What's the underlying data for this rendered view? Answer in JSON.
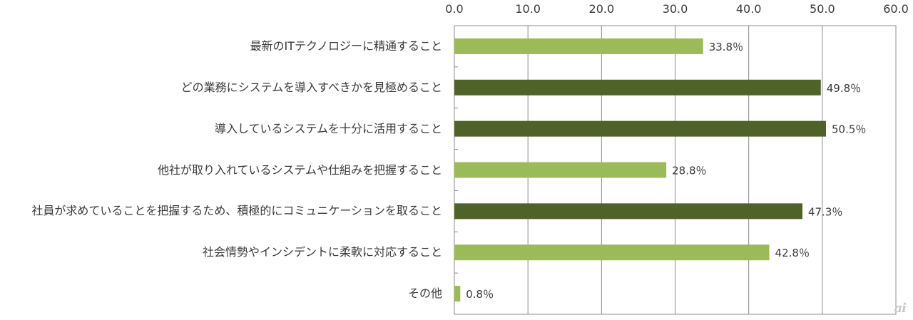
{
  "chart_data": {
    "type": "bar",
    "orientation": "horizontal",
    "categories": [
      "最新のITテクノロジーに精通すること",
      "どの業務にシステムを導入すべきかを見極めること",
      "導入しているシステムを十分に活用すること",
      "他社が取り入れているシステムや仕組みを把握すること",
      "社員が求めていることを把握するため、積極的にコミュニケーションを取ること",
      "社会情勢やインシデントに柔軟に対応すること",
      "その他"
    ],
    "values": [
      33.8,
      49.8,
      50.5,
      28.8,
      47.3,
      42.8,
      0.8
    ],
    "value_labels": [
      "33.8％",
      "49.8％",
      "50.5％",
      "28.8％",
      "47.3％",
      "42.8％",
      "0.8％"
    ],
    "bar_colors": [
      "#9bbb59",
      "#4f6228",
      "#4f6228",
      "#9bbb59",
      "#4f6228",
      "#9bbb59",
      "#9bbb59"
    ],
    "xlim": [
      0,
      60
    ],
    "xticks": [
      "0.0",
      "10.0",
      "20.0",
      "30.0",
      "40.0",
      "50.0",
      "60.0"
    ],
    "grid": true,
    "title": "",
    "xlabel": "",
    "ylabel": ""
  },
  "watermark": "ai"
}
